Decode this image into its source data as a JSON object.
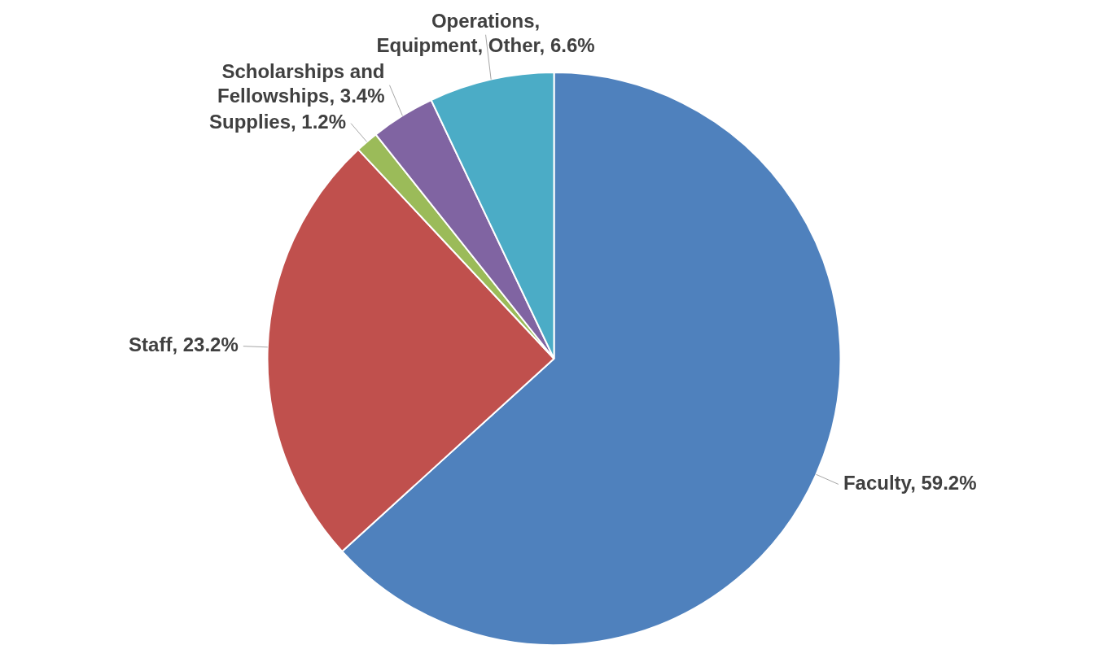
{
  "chart_data": {
    "type": "pie",
    "categories": [
      "Faculty",
      "Staff",
      "Supplies",
      "Scholarships and Fellowships",
      "Operations, Equipment, Other"
    ],
    "values": [
      59.2,
      23.2,
      1.2,
      3.4,
      6.6
    ],
    "colors": [
      "#4f81bd",
      "#c0504d",
      "#9bbb59",
      "#8064a2",
      "#4bacc6"
    ],
    "value_labels": [
      "59.2%",
      "23.2%",
      "1.2%",
      "3.4%",
      "6.6%"
    ],
    "legend": false
  }
}
